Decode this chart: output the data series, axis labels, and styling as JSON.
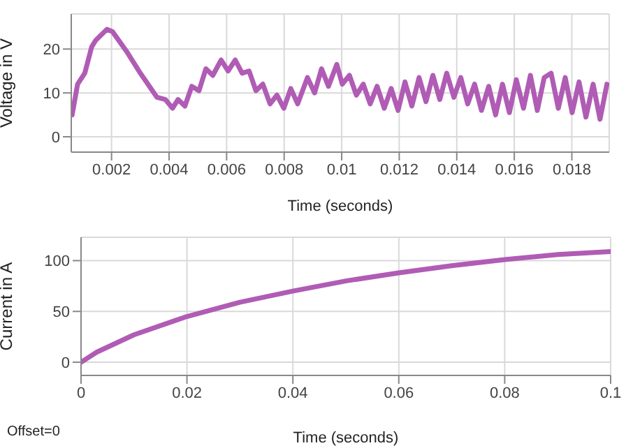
{
  "chart_data": [
    {
      "type": "line",
      "xlabel": "Time (seconds)",
      "ylabel": "Voltage in V",
      "color": "#b05cb5",
      "grid": true,
      "xlim": [
        0.0006,
        0.0193
      ],
      "ylim": [
        -3.5,
        28
      ],
      "xticks": [
        0.002,
        0.004,
        0.006,
        0.008,
        0.01,
        0.012,
        0.014,
        0.016,
        0.018
      ],
      "yticks": [
        0,
        10,
        20
      ],
      "x": [
        0.00063,
        0.00082,
        0.00107,
        0.00131,
        0.00145,
        0.00184,
        0.00203,
        0.00252,
        0.003,
        0.00358,
        0.00387,
        0.00412,
        0.00431,
        0.00455,
        0.00479,
        0.00504,
        0.00528,
        0.00552,
        0.00581,
        0.00605,
        0.0063,
        0.00654,
        0.00678,
        0.00702,
        0.00726,
        0.00751,
        0.00775,
        0.00799,
        0.00823,
        0.00847,
        0.00881,
        0.00906,
        0.0093,
        0.00954,
        0.00983,
        0.01002,
        0.01027,
        0.01051,
        0.01075,
        0.01099,
        0.01123,
        0.01148,
        0.01172,
        0.01196,
        0.0122,
        0.01244,
        0.01269,
        0.01293,
        0.01317,
        0.01341,
        0.01365,
        0.0139,
        0.01414,
        0.01438,
        0.01462,
        0.01486,
        0.01511,
        0.01535,
        0.01559,
        0.01583,
        0.01607,
        0.01632,
        0.01656,
        0.0168,
        0.01704,
        0.01728,
        0.01753,
        0.01777,
        0.01801,
        0.01825,
        0.01849,
        0.01874,
        0.01898,
        0.01922
      ],
      "values": [
        5,
        12,
        14.5,
        20.5,
        22,
        24.5,
        24,
        19.5,
        14.5,
        9,
        8.5,
        6.5,
        8.5,
        7,
        11.5,
        10.5,
        15.5,
        14,
        17.5,
        15,
        17.5,
        14.5,
        15,
        10.5,
        12,
        7.5,
        9.5,
        6.5,
        11,
        7.5,
        13.5,
        10,
        15.5,
        11.5,
        16.5,
        12,
        14,
        9.5,
        12,
        7.5,
        11.5,
        6.5,
        11,
        6,
        12.5,
        7,
        13.5,
        8,
        14,
        8.5,
        14.5,
        9,
        13.5,
        7.5,
        12,
        6,
        11.5,
        5,
        12,
        5.5,
        13,
        6.5,
        14,
        6,
        13.5,
        14.5,
        6.5,
        13.5,
        5.5,
        12.5,
        4.5,
        12,
        4,
        12
      ]
    },
    {
      "type": "line",
      "xlabel": "Time (seconds)",
      "ylabel": "Current in A",
      "color": "#b05cb5",
      "grid": true,
      "xlim": [
        0,
        0.1
      ],
      "ylim": [
        -13,
        123
      ],
      "xticks": [
        0,
        0.02,
        0.04,
        0.06,
        0.08,
        0.1
      ],
      "yticks": [
        0,
        50,
        100
      ],
      "annotations": [
        "Offset=0"
      ],
      "x": [
        0,
        0.003,
        0.01,
        0.02,
        0.03,
        0.04,
        0.05,
        0.06,
        0.07,
        0.08,
        0.09,
        0.1
      ],
      "values": [
        0,
        10,
        27,
        45,
        59,
        70,
        80,
        88,
        95,
        101,
        106,
        109
      ]
    }
  ]
}
